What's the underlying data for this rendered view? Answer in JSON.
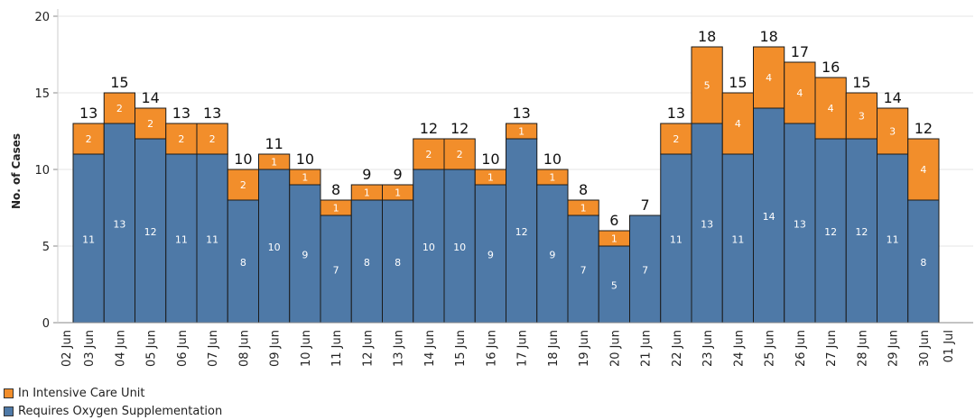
{
  "chart_data": {
    "type": "bar",
    "stacked": true,
    "title": "",
    "xlabel": "",
    "ylabel": "No. of Cases",
    "ylim": [
      0,
      20
    ],
    "yticks": [
      0,
      5,
      10,
      15,
      20
    ],
    "categories": [
      "03 Jun",
      "04 Jun",
      "05 Jun",
      "06 Jun",
      "07 Jun",
      "08 Jun",
      "09 Jun",
      "10 Jun",
      "11 Jun",
      "12 Jun",
      "13 Jun",
      "14 Jun",
      "15 Jun",
      "16 Jun",
      "17 Jun",
      "18 Jun",
      "19 Jun",
      "20 Jun",
      "21 Jun",
      "22 Jun",
      "23 Jun",
      "24 Jun",
      "25 Jun",
      "26 Jun",
      "27 Jun",
      "28 Jun",
      "29 Jun",
      "30 Jun"
    ],
    "axis_edge_labels": [
      "02 Jun",
      "01 Jul"
    ],
    "series": [
      {
        "name": "Requires Oxygen Supplementation",
        "color": "#4e79a7",
        "values": [
          11,
          13,
          12,
          11,
          11,
          8,
          10,
          9,
          7,
          8,
          8,
          10,
          10,
          9,
          12,
          9,
          7,
          5,
          7,
          11,
          13,
          11,
          14,
          13,
          12,
          12,
          11,
          8
        ]
      },
      {
        "name": "In Intensive Care Unit",
        "color": "#f28e2b",
        "values": [
          2,
          2,
          2,
          2,
          2,
          2,
          1,
          1,
          1,
          1,
          1,
          2,
          2,
          1,
          1,
          1,
          1,
          1,
          0,
          2,
          5,
          4,
          4,
          4,
          4,
          3,
          3,
          4
        ]
      }
    ],
    "totals": [
      13,
      15,
      14,
      13,
      13,
      10,
      11,
      10,
      8,
      9,
      9,
      12,
      12,
      10,
      13,
      10,
      8,
      6,
      7,
      13,
      18,
      15,
      18,
      17,
      16,
      15,
      14,
      12
    ]
  },
  "legend": {
    "items": [
      {
        "label": "In Intensive Care Unit",
        "color": "#f28e2b"
      },
      {
        "label": "Requires Oxygen Supplementation",
        "color": "#4e79a7"
      }
    ]
  }
}
